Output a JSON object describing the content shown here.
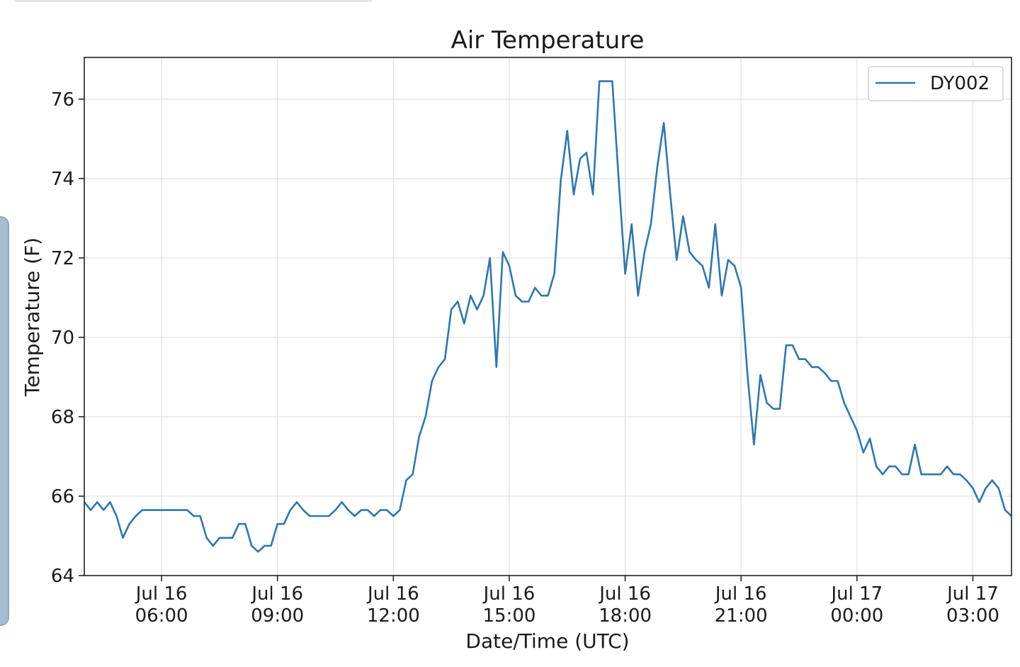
{
  "chart_data": {
    "type": "line",
    "title": "Air Temperature",
    "xlabel": "Date/Time (UTC)",
    "ylabel": "Temperature (F)",
    "ylim": [
      64,
      77.05
    ],
    "xlim": [
      "2019-07-16T04:00",
      "2019-07-17T04:00"
    ],
    "yticks": [
      64,
      66,
      68,
      70,
      72,
      74,
      76
    ],
    "xticks": [
      {
        "x": "2019-07-16T06:00",
        "label": [
          "Jul 16",
          "06:00"
        ]
      },
      {
        "x": "2019-07-16T09:00",
        "label": [
          "Jul 16",
          "09:00"
        ]
      },
      {
        "x": "2019-07-16T12:00",
        "label": [
          "Jul 16",
          "12:00"
        ]
      },
      {
        "x": "2019-07-16T15:00",
        "label": [
          "Jul 16",
          "15:00"
        ]
      },
      {
        "x": "2019-07-16T18:00",
        "label": [
          "Jul 16",
          "18:00"
        ]
      },
      {
        "x": "2019-07-16T21:00",
        "label": [
          "Jul 16",
          "21:00"
        ]
      },
      {
        "x": "2019-07-17T00:00",
        "label": [
          "Jul 17",
          "00:00"
        ]
      },
      {
        "x": "2019-07-17T03:00",
        "label": [
          "Jul 17",
          "03:00"
        ]
      }
    ],
    "grid": true,
    "legend_position": "upper right",
    "series": [
      {
        "name": "DY002",
        "color": "#2e77b0",
        "x": [
          "2019-07-16T04:00",
          "2019-07-16T04:10",
          "2019-07-16T04:20",
          "2019-07-16T04:30",
          "2019-07-16T04:40",
          "2019-07-16T04:50",
          "2019-07-16T05:00",
          "2019-07-16T05:10",
          "2019-07-16T05:20",
          "2019-07-16T05:30",
          "2019-07-16T05:40",
          "2019-07-16T05:50",
          "2019-07-16T06:00",
          "2019-07-16T06:10",
          "2019-07-16T06:20",
          "2019-07-16T06:30",
          "2019-07-16T06:40",
          "2019-07-16T06:50",
          "2019-07-16T07:00",
          "2019-07-16T07:10",
          "2019-07-16T07:20",
          "2019-07-16T07:30",
          "2019-07-16T07:40",
          "2019-07-16T07:50",
          "2019-07-16T08:00",
          "2019-07-16T08:10",
          "2019-07-16T08:20",
          "2019-07-16T08:30",
          "2019-07-16T08:40",
          "2019-07-16T08:50",
          "2019-07-16T09:00",
          "2019-07-16T09:10",
          "2019-07-16T09:20",
          "2019-07-16T09:30",
          "2019-07-16T09:40",
          "2019-07-16T09:50",
          "2019-07-16T10:00",
          "2019-07-16T10:10",
          "2019-07-16T10:20",
          "2019-07-16T10:30",
          "2019-07-16T10:40",
          "2019-07-16T10:50",
          "2019-07-16T11:00",
          "2019-07-16T11:10",
          "2019-07-16T11:20",
          "2019-07-16T11:30",
          "2019-07-16T11:40",
          "2019-07-16T11:50",
          "2019-07-16T12:00",
          "2019-07-16T12:10",
          "2019-07-16T12:20",
          "2019-07-16T12:30",
          "2019-07-16T12:40",
          "2019-07-16T12:50",
          "2019-07-16T13:00",
          "2019-07-16T13:10",
          "2019-07-16T13:20",
          "2019-07-16T13:30",
          "2019-07-16T13:40",
          "2019-07-16T13:50",
          "2019-07-16T14:00",
          "2019-07-16T14:10",
          "2019-07-16T14:20",
          "2019-07-16T14:30",
          "2019-07-16T14:40",
          "2019-07-16T14:50",
          "2019-07-16T15:00",
          "2019-07-16T15:10",
          "2019-07-16T15:20",
          "2019-07-16T15:30",
          "2019-07-16T15:40",
          "2019-07-16T15:50",
          "2019-07-16T16:00",
          "2019-07-16T16:10",
          "2019-07-16T16:20",
          "2019-07-16T16:30",
          "2019-07-16T16:40",
          "2019-07-16T16:50",
          "2019-07-16T17:00",
          "2019-07-16T17:10",
          "2019-07-16T17:20",
          "2019-07-16T17:30",
          "2019-07-16T17:40",
          "2019-07-16T17:50",
          "2019-07-16T18:00",
          "2019-07-16T18:10",
          "2019-07-16T18:20",
          "2019-07-16T18:30",
          "2019-07-16T18:40",
          "2019-07-16T18:50",
          "2019-07-16T19:00",
          "2019-07-16T19:10",
          "2019-07-16T19:20",
          "2019-07-16T19:30",
          "2019-07-16T19:40",
          "2019-07-16T19:50",
          "2019-07-16T20:00",
          "2019-07-16T20:10",
          "2019-07-16T20:20",
          "2019-07-16T20:30",
          "2019-07-16T20:40",
          "2019-07-16T20:50",
          "2019-07-16T21:00",
          "2019-07-16T21:10",
          "2019-07-16T21:20",
          "2019-07-16T21:30",
          "2019-07-16T21:40",
          "2019-07-16T21:50",
          "2019-07-16T22:00",
          "2019-07-16T22:10",
          "2019-07-16T22:20",
          "2019-07-16T22:30",
          "2019-07-16T22:40",
          "2019-07-16T22:50",
          "2019-07-16T23:00",
          "2019-07-16T23:10",
          "2019-07-16T23:20",
          "2019-07-16T23:30",
          "2019-07-16T23:40",
          "2019-07-16T23:50",
          "2019-07-17T00:00",
          "2019-07-17T00:10",
          "2019-07-17T00:20",
          "2019-07-17T00:30",
          "2019-07-17T00:40",
          "2019-07-17T00:50",
          "2019-07-17T01:00",
          "2019-07-17T01:10",
          "2019-07-17T01:20",
          "2019-07-17T01:30",
          "2019-07-17T01:40",
          "2019-07-17T01:50",
          "2019-07-17T02:00",
          "2019-07-17T02:10",
          "2019-07-17T02:20",
          "2019-07-17T02:30",
          "2019-07-17T02:40",
          "2019-07-17T02:50",
          "2019-07-17T03:00",
          "2019-07-17T03:10",
          "2019-07-17T03:20",
          "2019-07-17T03:30",
          "2019-07-17T03:40",
          "2019-07-17T03:50",
          "2019-07-17T04:00"
        ],
        "y": [
          65.85,
          65.65,
          65.85,
          65.65,
          65.85,
          65.5,
          64.95,
          65.3,
          65.5,
          65.65,
          65.65,
          65.65,
          65.65,
          65.65,
          65.65,
          65.65,
          65.65,
          65.5,
          65.5,
          64.95,
          64.75,
          64.95,
          64.95,
          64.95,
          65.3,
          65.3,
          64.75,
          64.6,
          64.75,
          64.75,
          65.3,
          65.3,
          65.65,
          65.85,
          65.65,
          65.5,
          65.5,
          65.5,
          65.5,
          65.65,
          65.85,
          65.65,
          65.5,
          65.65,
          65.65,
          65.5,
          65.65,
          65.65,
          65.5,
          65.65,
          66.4,
          66.55,
          67.5,
          68.0,
          68.9,
          69.25,
          69.45,
          70.7,
          70.9,
          70.35,
          71.05,
          70.7,
          71.05,
          72.0,
          69.25,
          72.15,
          71.8,
          71.05,
          70.9,
          70.9,
          71.25,
          71.05,
          71.05,
          71.6,
          73.95,
          75.2,
          73.6,
          74.5,
          74.65,
          73.6,
          76.45,
          76.45,
          76.45,
          73.95,
          71.6,
          72.85,
          71.05,
          72.15,
          72.85,
          74.3,
          75.4,
          73.6,
          71.95,
          73.05,
          72.15,
          71.95,
          71.8,
          71.25,
          72.85,
          71.05,
          71.95,
          71.8,
          71.25,
          69.05,
          67.3,
          69.05,
          68.35,
          68.2,
          68.2,
          69.8,
          69.8,
          69.45,
          69.45,
          69.25,
          69.25,
          69.1,
          68.9,
          68.9,
          68.35,
          68.0,
          67.65,
          67.1,
          67.45,
          66.75,
          66.55,
          66.75,
          66.75,
          66.55,
          66.55,
          67.3,
          66.55,
          66.55,
          66.55,
          66.55,
          66.75,
          66.55,
          66.55,
          66.4,
          66.2,
          65.85,
          66.2,
          66.4,
          66.2,
          65.65,
          65.5
        ]
      }
    ]
  }
}
